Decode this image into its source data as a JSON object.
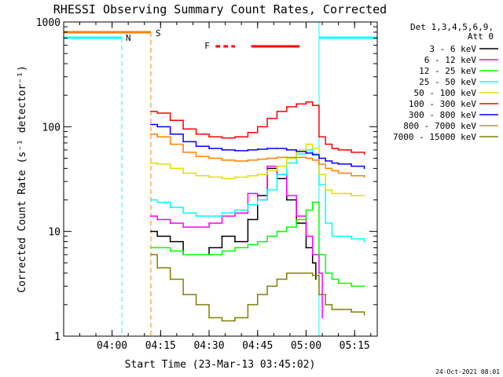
{
  "chart_data": {
    "type": "line",
    "title": "RHESSI Observing Summary Count Rates, Corrected",
    "xlabel": "Start Time (23-Mar-13 03:45:02)",
    "ylabel": "Corrected Count Rate (s⁻¹ detector⁻¹)",
    "yscale": "log",
    "ylim": [
      1,
      1000
    ],
    "xlim": [
      "03:45:02",
      "05:22:00"
    ],
    "x_ticks": [
      "04:00",
      "04:15",
      "04:30",
      "04:45",
      "05:00",
      "05:15"
    ],
    "y_ticks": [
      "1",
      "10",
      "100",
      "1000"
    ],
    "grid": false,
    "legend_position": "right",
    "legend_header": [
      "Det 1,3,4,5,6,9,",
      "Att 0"
    ],
    "timestamp": "24-Oct-2021 08:01",
    "markers": [
      {
        "label": "N",
        "type": "night",
        "color": "#00ffff",
        "from": "03:45:02",
        "to": "04:03"
      },
      {
        "label": "S",
        "type": "saa",
        "color": "#ff8000",
        "from": "03:45:02",
        "to": "04:12"
      },
      {
        "label": "F",
        "type": "flare",
        "color": "#ff0000",
        "segments": [
          [
            "04:32",
            "04:38"
          ],
          [
            "04:43",
            "04:58"
          ]
        ]
      },
      {
        "label": "",
        "type": "night",
        "color": "#00ffff",
        "from": "05:04",
        "to": "05:22"
      }
    ],
    "series": [
      {
        "name": "3 - 6 keV",
        "color": "#000000",
        "x": [
          "04:12",
          "04:14",
          "04:18",
          "04:22",
          "04:26",
          "04:30",
          "04:34",
          "04:38",
          "04:42",
          "04:45",
          "04:48",
          "04:51",
          "04:54",
          "04:57",
          "05:00",
          "05:02",
          "05:03"
        ],
        "values": [
          10,
          9,
          8,
          6,
          6,
          7,
          9,
          8,
          13,
          22,
          40,
          32,
          20,
          12,
          7,
          5,
          3.5
        ]
      },
      {
        "name": "6 - 12 keV",
        "color": "#ff00ff",
        "x": [
          "04:12",
          "04:14",
          "04:18",
          "04:22",
          "04:26",
          "04:30",
          "04:34",
          "04:38",
          "04:42",
          "04:45",
          "04:48",
          "04:51",
          "04:54",
          "04:57",
          "05:00",
          "05:02",
          "05:04",
          "05:05"
        ],
        "values": [
          14,
          13,
          12,
          11,
          11,
          12,
          14,
          15,
          23,
          20,
          42,
          35,
          22,
          14,
          9,
          6,
          4,
          1.5
        ]
      },
      {
        "name": "12 - 25 keV",
        "color": "#00ff00",
        "x": [
          "04:12",
          "04:14",
          "04:18",
          "04:22",
          "04:26",
          "04:30",
          "04:34",
          "04:38",
          "04:42",
          "04:45",
          "04:48",
          "04:51",
          "04:54",
          "04:57",
          "05:00",
          "05:02",
          "05:04",
          "05:06",
          "05:08",
          "05:10",
          "05:14",
          "05:18"
        ],
        "values": [
          7,
          7,
          6.5,
          6,
          6,
          6,
          6.5,
          7,
          7.5,
          8,
          9,
          10,
          11,
          13,
          16,
          19,
          6,
          4,
          3.5,
          3.2,
          3,
          3
        ]
      },
      {
        "name": "25 - 50 keV",
        "color": "#00ffff",
        "x": [
          "04:12",
          "04:14",
          "04:18",
          "04:22",
          "04:26",
          "04:30",
          "04:34",
          "04:38",
          "04:42",
          "04:45",
          "04:48",
          "04:51",
          "04:54",
          "04:57",
          "05:00",
          "05:02",
          "05:04",
          "05:06",
          "05:08",
          "05:10",
          "05:14",
          "05:18"
        ],
        "values": [
          20,
          19,
          17,
          15,
          14,
          14,
          15,
          16,
          18,
          20,
          25,
          35,
          45,
          55,
          60,
          55,
          28,
          12,
          9,
          9,
          8.5,
          8
        ]
      },
      {
        "name": "50 - 100 keV",
        "color": "#e0e000",
        "x": [
          "04:12",
          "04:14",
          "04:18",
          "04:22",
          "04:26",
          "04:30",
          "04:34",
          "04:38",
          "04:42",
          "04:45",
          "04:48",
          "04:51",
          "04:54",
          "04:57",
          "05:00",
          "05:02",
          "05:04",
          "05:06",
          "05:08",
          "05:10",
          "05:14",
          "05:18"
        ],
        "values": [
          45,
          44,
          40,
          36,
          34,
          33,
          32,
          33,
          34,
          35,
          38,
          42,
          50,
          60,
          68,
          62,
          35,
          25,
          23,
          23,
          22,
          22
        ]
      },
      {
        "name": "100 - 300 keV",
        "color": "#ff0000",
        "x": [
          "04:12",
          "04:14",
          "04:18",
          "04:22",
          "04:26",
          "04:30",
          "04:34",
          "04:38",
          "04:42",
          "04:45",
          "04:48",
          "04:51",
          "04:54",
          "04:57",
          "05:00",
          "05:02",
          "05:04",
          "05:06",
          "05:08",
          "05:10",
          "05:14",
          "05:18"
        ],
        "values": [
          140,
          135,
          115,
          95,
          85,
          80,
          78,
          80,
          88,
          100,
          120,
          140,
          155,
          165,
          172,
          160,
          80,
          68,
          62,
          60,
          57,
          55
        ]
      },
      {
        "name": "300 - 800 keV",
        "color": "#0000ff",
        "x": [
          "04:12",
          "04:14",
          "04:18",
          "04:22",
          "04:26",
          "04:30",
          "04:34",
          "04:38",
          "04:42",
          "04:45",
          "04:48",
          "04:51",
          "04:54",
          "04:57",
          "05:00",
          "05:02",
          "05:04",
          "05:06",
          "05:08",
          "05:10",
          "05:14",
          "05:18"
        ],
        "values": [
          105,
          100,
          85,
          72,
          65,
          62,
          60,
          59,
          60,
          61,
          62,
          62,
          60,
          58,
          56,
          54,
          50,
          47,
          45,
          44,
          42,
          40
        ]
      },
      {
        "name": "800 - 7000 keV",
        "color": "#ff8000",
        "x": [
          "04:12",
          "04:14",
          "04:18",
          "04:22",
          "04:26",
          "04:30",
          "04:34",
          "04:38",
          "04:42",
          "04:45",
          "04:48",
          "04:51",
          "04:54",
          "04:57",
          "05:00",
          "05:02",
          "05:04",
          "05:06",
          "05:08",
          "05:10",
          "05:14",
          "05:18"
        ],
        "values": [
          85,
          80,
          68,
          57,
          52,
          50,
          48,
          47,
          48,
          49,
          50,
          51,
          51,
          51,
          50,
          48,
          44,
          40,
          38,
          36,
          34,
          33
        ]
      },
      {
        "name": "7000 - 15000 keV",
        "color": "#808000",
        "x": [
          "04:12",
          "04:14",
          "04:18",
          "04:22",
          "04:26",
          "04:30",
          "04:34",
          "04:38",
          "04:42",
          "04:45",
          "04:48",
          "04:51",
          "04:54",
          "04:57",
          "05:00",
          "05:02",
          "05:04",
          "05:06",
          "05:08",
          "05:10",
          "05:14",
          "05:18"
        ],
        "values": [
          6,
          4.5,
          3.5,
          2.5,
          2,
          1.5,
          1.4,
          1.5,
          2,
          2.5,
          3,
          3.5,
          4,
          4,
          4,
          3.8,
          2.5,
          2,
          1.8,
          1.8,
          1.7,
          1.6
        ]
      }
    ]
  }
}
